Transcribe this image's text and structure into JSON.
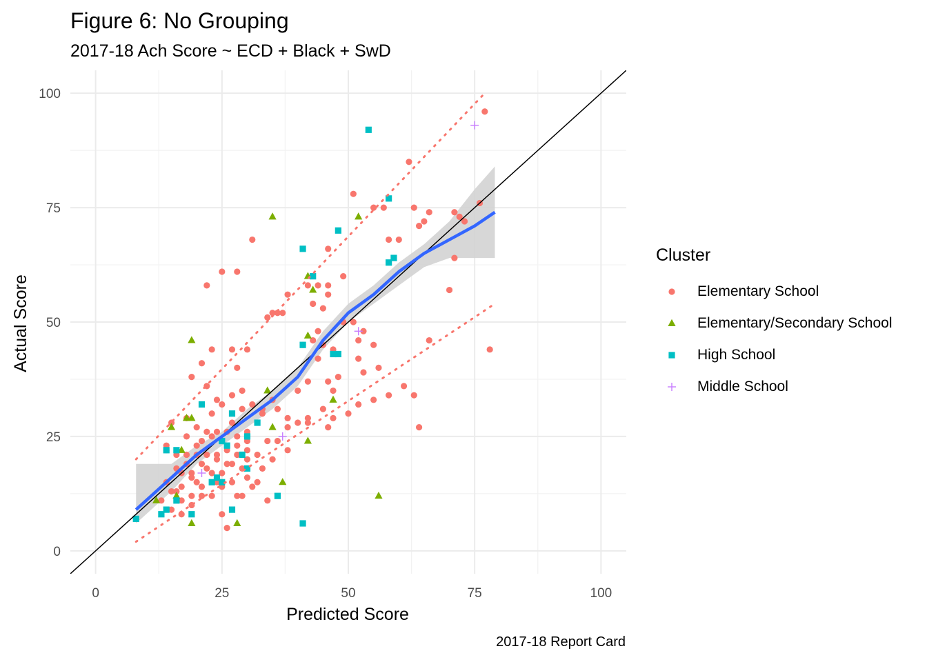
{
  "chart_data": {
    "type": "scatter",
    "title": "Figure 6: No Grouping",
    "subtitle": "2017-18 Ach Score ~ ECD + Black + SwD",
    "xlabel": "Predicted Score",
    "ylabel": "Actual Score",
    "caption": "2017-18 Report Card",
    "xlim": [
      -5,
      105
    ],
    "ylim": [
      -5,
      105
    ],
    "x_ticks": [
      "0",
      "25",
      "50",
      "75",
      "100"
    ],
    "y_ticks": [
      "0",
      "25",
      "50",
      "75",
      "100"
    ],
    "grid": true,
    "legend": {
      "title": "Cluster",
      "position": "right"
    },
    "reference_line": {
      "slope": 1,
      "intercept": 0,
      "color": "#000000"
    },
    "colors": {
      "Elementary School": "#F8766D",
      "Elementary/Secondary School": "#7CAE00",
      "High School": "#00BFC4",
      "Middle School": "#C77CFF",
      "smooth": "#3366FF",
      "band": "#d3d3d3",
      "prediction": "#F8766D"
    },
    "series": [
      {
        "name": "Elementary School",
        "shape": "circle",
        "points": [
          [
            77,
            96
          ],
          [
            62,
            85
          ],
          [
            51,
            78
          ],
          [
            63,
            75
          ],
          [
            66,
            74
          ],
          [
            71,
            74
          ],
          [
            73,
            72
          ],
          [
            72,
            73
          ],
          [
            76,
            76
          ],
          [
            55,
            75
          ],
          [
            57,
            75
          ],
          [
            64,
            71
          ],
          [
            65,
            72
          ],
          [
            31,
            68
          ],
          [
            58,
            68
          ],
          [
            60,
            68
          ],
          [
            46,
            66
          ],
          [
            25,
            61
          ],
          [
            28,
            61
          ],
          [
            22,
            58
          ],
          [
            42,
            58
          ],
          [
            44,
            58
          ],
          [
            46,
            58
          ],
          [
            35,
            52
          ],
          [
            37,
            52
          ],
          [
            34,
            51
          ],
          [
            49,
            60
          ],
          [
            46,
            56
          ],
          [
            38,
            56
          ],
          [
            43,
            54
          ],
          [
            45,
            53
          ],
          [
            36,
            52
          ],
          [
            49,
            50
          ],
          [
            51,
            50
          ],
          [
            53,
            48
          ],
          [
            52,
            46
          ],
          [
            55,
            45
          ],
          [
            66,
            46
          ],
          [
            78,
            44
          ],
          [
            70,
            57
          ],
          [
            71,
            64
          ],
          [
            44,
            48
          ],
          [
            43,
            46
          ],
          [
            45,
            45
          ],
          [
            30,
            44
          ],
          [
            23,
            44
          ],
          [
            27,
            44
          ],
          [
            41,
            45
          ],
          [
            44,
            42
          ],
          [
            47,
            44
          ],
          [
            52,
            42
          ],
          [
            53,
            39
          ],
          [
            56,
            40
          ],
          [
            48,
            38
          ],
          [
            46,
            37
          ],
          [
            47,
            35
          ],
          [
            42,
            37
          ],
          [
            40,
            35
          ],
          [
            35,
            33
          ],
          [
            33,
            31
          ],
          [
            27,
            34
          ],
          [
            29,
            35
          ],
          [
            21,
            41
          ],
          [
            19,
            38
          ],
          [
            22,
            36
          ],
          [
            24,
            33
          ],
          [
            28,
            40
          ],
          [
            25,
            32
          ],
          [
            29,
            31
          ],
          [
            31,
            32
          ],
          [
            33,
            30
          ],
          [
            36,
            31
          ],
          [
            38,
            29
          ],
          [
            40,
            28
          ],
          [
            42,
            29
          ],
          [
            45,
            31
          ],
          [
            47,
            29
          ],
          [
            50,
            30
          ],
          [
            52,
            32
          ],
          [
            55,
            33
          ],
          [
            58,
            34
          ],
          [
            61,
            36
          ],
          [
            63,
            34
          ],
          [
            64,
            27
          ],
          [
            46,
            27
          ],
          [
            42,
            28
          ],
          [
            38,
            27
          ],
          [
            34,
            24
          ],
          [
            30,
            24
          ],
          [
            27,
            28
          ],
          [
            23,
            30
          ],
          [
            20,
            27
          ],
          [
            18,
            29
          ],
          [
            15,
            28
          ],
          [
            18,
            25
          ],
          [
            21,
            24
          ],
          [
            24,
            26
          ],
          [
            26,
            22
          ],
          [
            28,
            21
          ],
          [
            30,
            20
          ],
          [
            24,
            20
          ],
          [
            22,
            21
          ],
          [
            20,
            21
          ],
          [
            18,
            19
          ],
          [
            16,
            21
          ],
          [
            14,
            22
          ],
          [
            17,
            17
          ],
          [
            20,
            15
          ],
          [
            23,
            17
          ],
          [
            25,
            14
          ],
          [
            27,
            15
          ],
          [
            29,
            12
          ],
          [
            31,
            14
          ],
          [
            33,
            18
          ],
          [
            35,
            20
          ],
          [
            38,
            22
          ],
          [
            36,
            24
          ],
          [
            32,
            21
          ],
          [
            29,
            18
          ],
          [
            27,
            19
          ],
          [
            25,
            17
          ],
          [
            23,
            12
          ],
          [
            21,
            14
          ],
          [
            19,
            12
          ],
          [
            17,
            11
          ],
          [
            15,
            9
          ],
          [
            17,
            8
          ],
          [
            19,
            10
          ],
          [
            21,
            12
          ],
          [
            25,
            8
          ],
          [
            26,
            5
          ],
          [
            28,
            12
          ],
          [
            30,
            16
          ],
          [
            32,
            15
          ],
          [
            34,
            11
          ],
          [
            24,
            21
          ],
          [
            26,
            26
          ],
          [
            28,
            25
          ],
          [
            30,
            26
          ],
          [
            23,
            25
          ],
          [
            21,
            19
          ],
          [
            19,
            17
          ],
          [
            16,
            13
          ],
          [
            14,
            15
          ],
          [
            18,
            21
          ],
          [
            20,
            23
          ],
          [
            22,
            26
          ],
          [
            28,
            23
          ],
          [
            30,
            22
          ],
          [
            26,
            19
          ],
          [
            24,
            15
          ],
          [
            22,
            18
          ],
          [
            17,
            14
          ],
          [
            15,
            13
          ],
          [
            14,
            23
          ],
          [
            16,
            18
          ],
          [
            19,
            16
          ],
          [
            13,
            11
          ]
        ]
      },
      {
        "name": "Elementary/Secondary School",
        "shape": "triangle",
        "points": [
          [
            35,
            73
          ],
          [
            52,
            73
          ],
          [
            42,
            60
          ],
          [
            43,
            57
          ],
          [
            42,
            47
          ],
          [
            19,
            46
          ],
          [
            47,
            33
          ],
          [
            34,
            35
          ],
          [
            35,
            27
          ],
          [
            42,
            24
          ],
          [
            15,
            27
          ],
          [
            18,
            29
          ],
          [
            19,
            29
          ],
          [
            17,
            22
          ],
          [
            37,
            15
          ],
          [
            56,
            12
          ],
          [
            16,
            12
          ],
          [
            12,
            11
          ],
          [
            19,
            6
          ],
          [
            28,
            6
          ]
        ]
      },
      {
        "name": "High School",
        "shape": "square",
        "points": [
          [
            54,
            92
          ],
          [
            58,
            77
          ],
          [
            48,
            70
          ],
          [
            41,
            66
          ],
          [
            59,
            64
          ],
          [
            58,
            63
          ],
          [
            43,
            60
          ],
          [
            41,
            45
          ],
          [
            47,
            43
          ],
          [
            48,
            43
          ],
          [
            21,
            32
          ],
          [
            27,
            30
          ],
          [
            32,
            28
          ],
          [
            30,
            25
          ],
          [
            25,
            24
          ],
          [
            26,
            23
          ],
          [
            14,
            22
          ],
          [
            16,
            22
          ],
          [
            29,
            21
          ],
          [
            30,
            18
          ],
          [
            25,
            15
          ],
          [
            23,
            15
          ],
          [
            16,
            11
          ],
          [
            36,
            12
          ],
          [
            14,
            9
          ],
          [
            13,
            8
          ],
          [
            19,
            8
          ],
          [
            27,
            9
          ],
          [
            8,
            7
          ],
          [
            41,
            6
          ],
          [
            24,
            16
          ]
        ]
      },
      {
        "name": "Middle School",
        "shape": "plus",
        "points": [
          [
            75,
            93
          ],
          [
            52,
            48
          ],
          [
            37,
            25
          ],
          [
            21,
            17
          ]
        ]
      }
    ],
    "smooth": {
      "x": [
        8,
        15,
        20,
        25,
        30,
        35,
        40,
        45,
        50,
        55,
        60,
        65,
        70,
        75,
        79
      ],
      "y": [
        9,
        16,
        21,
        25,
        29,
        33,
        38,
        46,
        52,
        56,
        61,
        65,
        68,
        71,
        74
      ],
      "lower": [
        6,
        13,
        19,
        23,
        27,
        31,
        36,
        44,
        50,
        54,
        58,
        62,
        64,
        64,
        64
      ],
      "upper": [
        19,
        19,
        23,
        26,
        31,
        35,
        40,
        48,
        54,
        58,
        63,
        67,
        72,
        79,
        84
      ]
    },
    "prediction_upper": {
      "x": [
        8,
        77
      ],
      "y": [
        20,
        100
      ]
    },
    "prediction_lower": {
      "x": [
        8,
        79
      ],
      "y": [
        2,
        54
      ]
    }
  }
}
